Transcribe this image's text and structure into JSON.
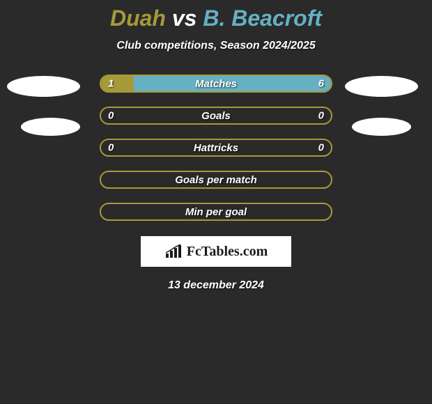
{
  "background_color": "#2a2a2a",
  "title": {
    "player1": "Duah",
    "player1_color": "#a59a3a",
    "vs": "vs",
    "vs_color": "#ffffff",
    "player2": "B. Beacroft",
    "player2_color": "#66b0c4",
    "fontsize": 32
  },
  "subtitle": {
    "text": "Club competitions, Season 2024/2025",
    "color": "#ffffff",
    "fontsize": 16
  },
  "side_ellipse": {
    "color": "#ffffff",
    "width": 105,
    "height": 30
  },
  "bars": [
    {
      "label": "Matches",
      "left_value": "1",
      "right_value": "6",
      "left_fill_pct": 14.3,
      "right_fill_pct": 85.7,
      "fill_color_left": "#a59a3a",
      "fill_color_right": "#66b0c4",
      "border_color": "#a59a3a"
    },
    {
      "label": "Goals",
      "left_value": "0",
      "right_value": "0",
      "left_fill_pct": 0,
      "right_fill_pct": 0,
      "fill_color_left": "#a59a3a",
      "fill_color_right": "#66b0c4",
      "border_color": "#a59a3a"
    },
    {
      "label": "Hattricks",
      "left_value": "0",
      "right_value": "0",
      "left_fill_pct": 0,
      "right_fill_pct": 0,
      "fill_color_left": "#a59a3a",
      "fill_color_right": "#66b0c4",
      "border_color": "#a59a3a"
    },
    {
      "label": "Goals per match",
      "left_value": "",
      "right_value": "",
      "left_fill_pct": 0,
      "right_fill_pct": 0,
      "fill_color_left": "#a59a3a",
      "fill_color_right": "#66b0c4",
      "border_color": "#a59a3a"
    },
    {
      "label": "Min per goal",
      "left_value": "",
      "right_value": "",
      "left_fill_pct": 0,
      "right_fill_pct": 0,
      "fill_color_left": "#a59a3a",
      "fill_color_right": "#66b0c4",
      "border_color": "#a59a3a"
    }
  ],
  "logo": {
    "text": "FcTables.com",
    "background": "#ffffff",
    "text_color": "#1a1a1a",
    "icon_color": "#1a1a1a"
  },
  "date": {
    "text": "13 december 2024",
    "color": "#ffffff",
    "fontsize": 16
  }
}
